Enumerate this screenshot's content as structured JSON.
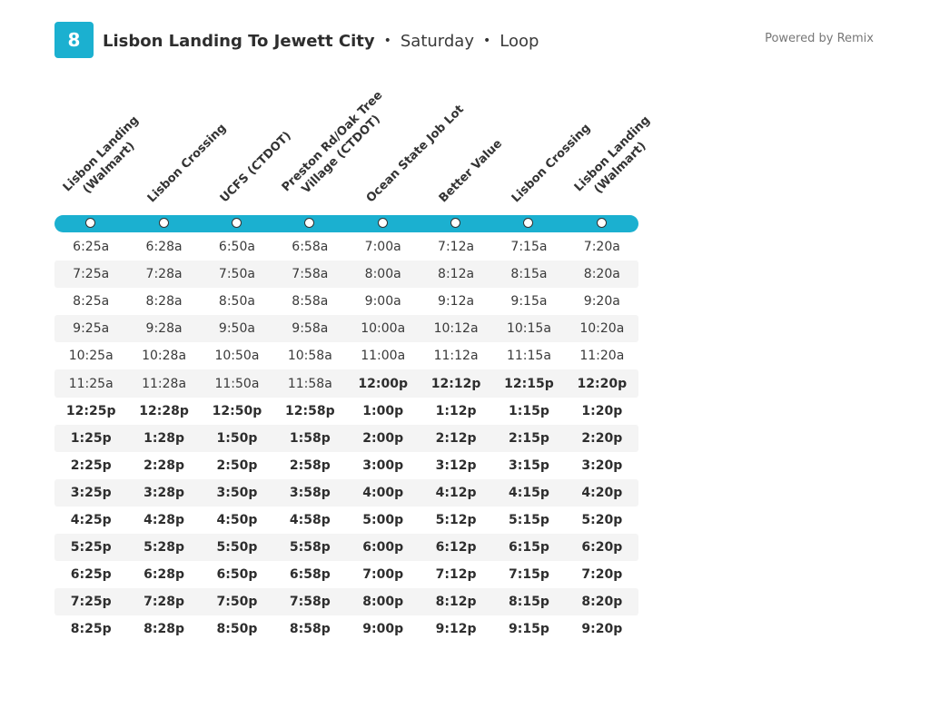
{
  "header": {
    "route_number": "8",
    "route_name": "Lisbon Landing To Jewett City",
    "separator": "•",
    "day": "Saturday",
    "route_type": "Loop",
    "powered_by": "Powered by Remix",
    "accent_color": "#1bb0d0"
  },
  "stops": [
    {
      "line1": "Lisbon Landing",
      "line2": "(Walmart)"
    },
    {
      "line1": "Lisbon Crossing",
      "line2": ""
    },
    {
      "line1": "UCFS (CTDOT)",
      "line2": ""
    },
    {
      "line1": "Preston Rd/Oak Tree",
      "line2": "Village (CTDOT)"
    },
    {
      "line1": "Ocean State Job Lot",
      "line2": ""
    },
    {
      "line1": "Better Value",
      "line2": ""
    },
    {
      "line1": "Lisbon Crossing",
      "line2": ""
    },
    {
      "line1": "Lisbon Landing",
      "line2": "(Walmart)"
    }
  ],
  "trips": [
    [
      "6:25a",
      "6:28a",
      "6:50a",
      "6:58a",
      "7:00a",
      "7:12a",
      "7:15a",
      "7:20a"
    ],
    [
      "7:25a",
      "7:28a",
      "7:50a",
      "7:58a",
      "8:00a",
      "8:12a",
      "8:15a",
      "8:20a"
    ],
    [
      "8:25a",
      "8:28a",
      "8:50a",
      "8:58a",
      "9:00a",
      "9:12a",
      "9:15a",
      "9:20a"
    ],
    [
      "9:25a",
      "9:28a",
      "9:50a",
      "9:58a",
      "10:00a",
      "10:12a",
      "10:15a",
      "10:20a"
    ],
    [
      "10:25a",
      "10:28a",
      "10:50a",
      "10:58a",
      "11:00a",
      "11:12a",
      "11:15a",
      "11:20a"
    ],
    [
      "11:25a",
      "11:28a",
      "11:50a",
      "11:58a",
      "12:00p",
      "12:12p",
      "12:15p",
      "12:20p"
    ],
    [
      "12:25p",
      "12:28p",
      "12:50p",
      "12:58p",
      "1:00p",
      "1:12p",
      "1:15p",
      "1:20p"
    ],
    [
      "1:25p",
      "1:28p",
      "1:50p",
      "1:58p",
      "2:00p",
      "2:12p",
      "2:15p",
      "2:20p"
    ],
    [
      "2:25p",
      "2:28p",
      "2:50p",
      "2:58p",
      "3:00p",
      "3:12p",
      "3:15p",
      "3:20p"
    ],
    [
      "3:25p",
      "3:28p",
      "3:50p",
      "3:58p",
      "4:00p",
      "4:12p",
      "4:15p",
      "4:20p"
    ],
    [
      "4:25p",
      "4:28p",
      "4:50p",
      "4:58p",
      "5:00p",
      "5:12p",
      "5:15p",
      "5:20p"
    ],
    [
      "5:25p",
      "5:28p",
      "5:50p",
      "5:58p",
      "6:00p",
      "6:12p",
      "6:15p",
      "6:20p"
    ],
    [
      "6:25p",
      "6:28p",
      "6:50p",
      "6:58p",
      "7:00p",
      "7:12p",
      "7:15p",
      "7:20p"
    ],
    [
      "7:25p",
      "7:28p",
      "7:50p",
      "7:58p",
      "8:00p",
      "8:12p",
      "8:15p",
      "8:20p"
    ],
    [
      "8:25p",
      "8:28p",
      "8:50p",
      "8:58p",
      "9:00p",
      "9:12p",
      "9:15p",
      "9:20p"
    ]
  ]
}
